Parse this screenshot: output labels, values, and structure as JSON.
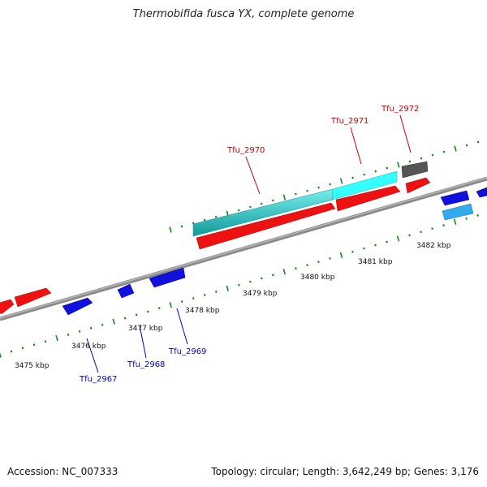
{
  "title": "Thermobifida fusca YX, complete genome",
  "footer": {
    "accession": "Accession: NC_007333",
    "summary": "Topology: circular; Length: 3,642,249 bp; Genes: 3,176"
  },
  "colors": {
    "forward_gene": "#ee1111",
    "reverse_gene": "#1111dd",
    "cyan_gene": "#22cccc",
    "light_blue_gene": "#33aaee",
    "gray_gene": "#555555",
    "backbone": "#808080",
    "tick": "#118811",
    "forward_label": "#cc0000",
    "reverse_label": "#0000cc"
  },
  "scale": {
    "unit": "kbp",
    "labels": [
      "3475 kbp",
      "3476 kbp",
      "3477 kbp",
      "3478 kbp",
      "3479 kbp",
      "3480 kbp",
      "3481 kbp",
      "3482 kbp"
    ]
  },
  "gene_labels": [
    {
      "text": "Tfu_2967",
      "strand": "reverse"
    },
    {
      "text": "Tfu_2968",
      "strand": "reverse"
    },
    {
      "text": "Tfu_2969",
      "strand": "reverse"
    },
    {
      "text": "Tfu_2970",
      "strand": "forward"
    },
    {
      "text": "Tfu_2971",
      "strand": "forward"
    },
    {
      "text": "Tfu_2972",
      "strand": "forward"
    }
  ]
}
